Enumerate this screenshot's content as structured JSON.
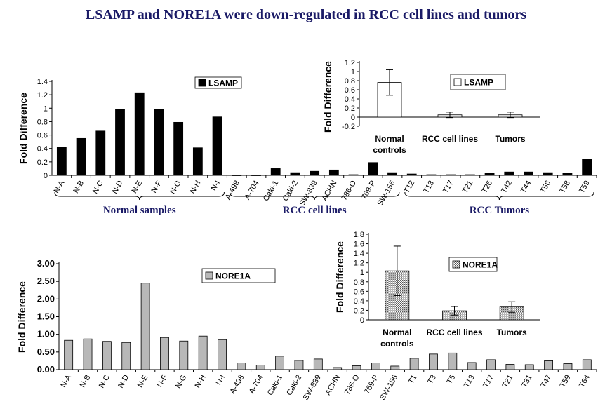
{
  "title": "LSAMP and NORE1A were down-regulated in RCC cell lines and tumors",
  "chart_data": [
    {
      "id": "lsamp-main",
      "type": "bar",
      "legend": "LSAMP",
      "ylabel": "Fold Difference",
      "ylim": [
        0,
        1.4
      ],
      "yticks": [
        "0",
        "0.2",
        "0.4",
        "0.6",
        "0.8",
        "1",
        "1.2",
        "1.4"
      ],
      "categories": [
        "N-A",
        "N-B",
        "N-C",
        "N-D",
        "N-E",
        "N-F",
        "N-G",
        "N-H",
        "N-I",
        "A-498",
        "A-704",
        "Caki-1",
        "Caki-2",
        "SW-839",
        "ACHN",
        "786-O",
        "769-P",
        "SW-156",
        "T12",
        "T13",
        "T17",
        "T21",
        "T26",
        "T42",
        "T44",
        "T56",
        "T58",
        "T59"
      ],
      "values": [
        0.42,
        0.55,
        0.66,
        0.98,
        1.23,
        0.98,
        0.79,
        0.41,
        0.87,
        0,
        0,
        0.1,
        0.04,
        0.06,
        0.08,
        0.01,
        0.19,
        0.04,
        0.02,
        0.01,
        0.01,
        0.01,
        0.03,
        0.05,
        0.05,
        0.04,
        0.03,
        0.24
      ],
      "groups": [
        "Normal samples",
        "RCC cell lines",
        "RCC Tumors"
      ]
    },
    {
      "id": "lsamp-inset",
      "type": "bar",
      "legend": "LSAMP",
      "ylabel": "Fold Difference",
      "ylim": [
        -0.2,
        1.2
      ],
      "yticks": [
        "-0.2",
        "0",
        "0.2",
        "0.4",
        "0.6",
        "0.8",
        "1",
        "1.2"
      ],
      "categories": [
        [
          "Normal",
          "controls"
        ],
        [
          "RCC cell lines"
        ],
        [
          "Tumors"
        ]
      ],
      "values": [
        0.76,
        0.05,
        0.05
      ],
      "errors": [
        0.28,
        0.06,
        0.06
      ]
    },
    {
      "id": "nore1a-main",
      "type": "bar",
      "legend": "NORE1A",
      "ylabel": "Fold Difference",
      "ylim": [
        0,
        3
      ],
      "yticks": [
        "0.00",
        "0.50",
        "1.00",
        "1.50",
        "2.00",
        "2.50",
        "3.00"
      ],
      "categories": [
        "N-A",
        "N-B",
        "N-C",
        "N-D",
        "N-E",
        "N-F",
        "N-G",
        "N-H",
        "N-I",
        "A-498",
        "A-704",
        "Caki-1",
        "Caki-2",
        "SW-839",
        "ACHN",
        "786-O",
        "769-P",
        "SW-156",
        "T1",
        "T3",
        "T5",
        "T13",
        "T17",
        "T21",
        "T31",
        "T47",
        "T59",
        "T64"
      ],
      "values": [
        0.83,
        0.87,
        0.8,
        0.77,
        2.45,
        0.91,
        0.81,
        0.95,
        0.85,
        0.19,
        0.13,
        0.38,
        0.26,
        0.3,
        0.06,
        0.11,
        0.19,
        0.1,
        0.32,
        0.44,
        0.47,
        0.2,
        0.28,
        0.15,
        0.14,
        0.25,
        0.17,
        0.28
      ]
    },
    {
      "id": "nore1a-inset",
      "type": "bar",
      "legend": "NORE1A",
      "ylabel": "Fold Difference",
      "ylim": [
        0,
        1.8
      ],
      "yticks": [
        "0",
        "0.2",
        "0.4",
        "0.6",
        "0.8",
        "1",
        "1.2",
        "1.4",
        "1.6",
        "1.8"
      ],
      "categories": [
        [
          "Normal",
          "controls"
        ],
        [
          "RCC cell lines"
        ],
        [
          "Tumors"
        ]
      ],
      "values": [
        1.03,
        0.19,
        0.27
      ],
      "errors": [
        0.52,
        0.09,
        0.11
      ]
    }
  ],
  "colors": {
    "title": "#1a1a66",
    "lsamp_bar": "#000000",
    "nore1a_fill": "#b8b8b8",
    "inset_fill": "#ffffff"
  }
}
